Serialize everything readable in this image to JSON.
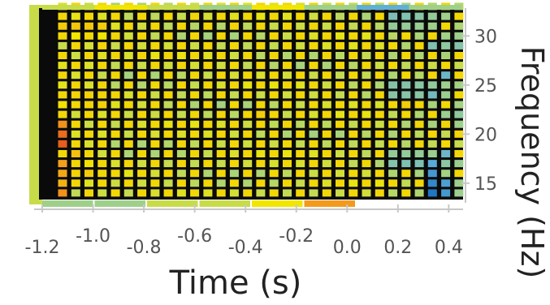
{
  "chart_data": {
    "type": "heatmap",
    "title": "",
    "xlabel": "Time (s)",
    "ylabel": "Frequency (Hz)",
    "xlim": [
      -1.2,
      0.45
    ],
    "ylim": [
      13.5,
      32.5
    ],
    "x_ticks": [
      {
        "value": -1.2,
        "label": "-1.2"
      },
      {
        "value": -1.0,
        "label": "-1.0"
      },
      {
        "value": -0.8,
        "label": "-0.8"
      },
      {
        "value": -0.6,
        "label": "-0.6"
      },
      {
        "value": -0.4,
        "label": "-0.4"
      },
      {
        "value": -0.2,
        "label": "-0.2"
      },
      {
        "value": 0.0,
        "label": "0.0"
      },
      {
        "value": 0.2,
        "label": "0.2"
      },
      {
        "value": 0.4,
        "label": "0.4"
      }
    ],
    "y_ticks": [
      {
        "value": 15,
        "label": "15"
      },
      {
        "value": 20,
        "label": "20"
      },
      {
        "value": 25,
        "label": "25"
      },
      {
        "value": 30,
        "label": "30"
      }
    ],
    "colormap": [
      "#1f77c4",
      "#5fb0d8",
      "#9fd08a",
      "#c8dc4a",
      "#f2e600",
      "#f39a1c",
      "#e0441c"
    ],
    "time_strip": {
      "colors": [
        "#9fd08a",
        "#9fd08a",
        "#c8dc4a",
        "#c8dc4a",
        "#f2e600",
        "#f39a1c",
        "#ffffff",
        "#ffffff"
      ]
    },
    "grid": {
      "rows": 20,
      "cols": 31,
      "freq_start": 14,
      "freq_step": 1,
      "time_start": -1.12,
      "time_step": 0.052
    },
    "highlights": [
      {
        "t": -1.1,
        "f": 19,
        "v": 0.95
      },
      {
        "t": -1.1,
        "f": 20,
        "v": 0.92
      },
      {
        "t": -1.1,
        "f": 21,
        "v": 0.85
      },
      {
        "t": -1.1,
        "f": 17,
        "v": 0.82
      },
      {
        "t": -1.1,
        "f": 16,
        "v": 0.8
      },
      {
        "t": -1.1,
        "f": 15,
        "v": 0.78
      },
      {
        "t": -1.1,
        "f": 14,
        "v": 0.85
      },
      {
        "t": -1.05,
        "f": 18,
        "v": 0.75
      },
      {
        "t": -1.05,
        "f": 15,
        "v": 0.7
      },
      {
        "t": -0.95,
        "f": 16,
        "v": 0.7
      },
      {
        "t": -0.35,
        "f": 22,
        "v": 0.72
      },
      {
        "t": 0.22,
        "f": 23,
        "v": 0.72
      },
      {
        "t": 0.33,
        "f": 14,
        "v": 0.0
      },
      {
        "t": 0.33,
        "f": 15,
        "v": 0.05
      },
      {
        "t": 0.33,
        "f": 16,
        "v": 0.1
      },
      {
        "t": 0.33,
        "f": 17,
        "v": 0.15
      },
      {
        "t": 0.38,
        "f": 14,
        "v": 0.1
      },
      {
        "t": 0.38,
        "f": 15,
        "v": 0.12
      },
      {
        "t": 0.38,
        "f": 18,
        "v": 0.2
      },
      {
        "t": 0.33,
        "f": 24,
        "v": 0.22
      },
      {
        "t": 0.38,
        "f": 26,
        "v": 0.2
      },
      {
        "t": 0.33,
        "f": 29,
        "v": 0.25
      }
    ]
  }
}
